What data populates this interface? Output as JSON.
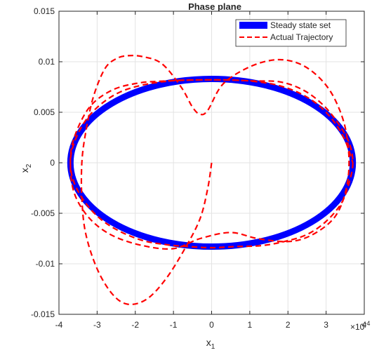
{
  "chart_data": {
    "type": "line",
    "title": "Phase plane",
    "xlabel": "x",
    "xlabel_sub": "1",
    "ylabel": "x",
    "ylabel_sub": "2",
    "x_multiplier_base": "×10",
    "x_multiplier_exp": "-4",
    "xlim": [
      -4,
      4
    ],
    "ylim": [
      -0.015,
      0.015
    ],
    "xticks": [
      -4,
      -3,
      -2,
      -1,
      0,
      1,
      2,
      3,
      4
    ],
    "xtick_labels": [
      "-4",
      "-3",
      "-2",
      "-1",
      "0",
      "1",
      "2",
      "3",
      "4"
    ],
    "yticks": [
      -0.015,
      -0.01,
      -0.005,
      0,
      0.005,
      0.01,
      0.015
    ],
    "ytick_labels": [
      "-0.015",
      "-0.01",
      "-0.005",
      "0",
      "0.005",
      "0.01",
      "0.015"
    ],
    "grid": true,
    "legend_position": "top-right",
    "series": [
      {
        "name": "Steady state set",
        "style": "solid-thick",
        "color": "#0000ff",
        "ellipse": {
          "cx": 0,
          "cy": 0,
          "rx": 3.7,
          "ry": 0.0083
        }
      },
      {
        "name": "Actual Trajectory",
        "style": "dashed",
        "color": "#ff0000",
        "x": [
          0,
          -0.1,
          -0.3,
          -0.7,
          -1.2,
          -1.7,
          -2.2,
          -2.6,
          -3.0,
          -3.3,
          -3.4,
          -3.4,
          -3.3,
          -3.1,
          -2.8,
          -2.5,
          -2.2,
          -1.8,
          -1.3,
          -0.8,
          -0.5,
          -0.3,
          -0.1,
          0.3,
          1.0,
          1.7,
          2.3,
          2.8,
          3.2,
          3.5,
          3.6,
          3.5,
          3.2,
          2.6,
          2.0,
          1.2,
          0.5,
          -0.3,
          -1.0,
          -1.8,
          -2.6,
          -3.2,
          -3.6,
          -3.7,
          -3.6,
          -3.2,
          -2.6,
          -1.9,
          -1.2,
          -0.4,
          0.4,
          1.1,
          1.8,
          2.4,
          2.9,
          3.3,
          3.6,
          3.7,
          3.6,
          3.4,
          3.0,
          2.5,
          1.9,
          1.3,
          0.6,
          0.0,
          -0.6,
          -1.2,
          -1.8,
          -2.4,
          -2.9,
          -3.3,
          -3.6,
          -3.7,
          -3.6,
          -3.3,
          -2.9,
          -2.4,
          -1.8,
          -1.1,
          -0.4,
          0.3,
          1.0,
          1.7,
          2.3,
          2.8,
          3.2,
          3.5,
          3.7
        ],
        "y": [
          0,
          -0.0025,
          -0.0055,
          -0.0085,
          -0.0115,
          -0.0135,
          -0.014,
          -0.013,
          -0.0105,
          -0.007,
          -0.0035,
          0.0,
          0.003,
          0.0065,
          0.0093,
          0.0103,
          0.0106,
          0.0105,
          0.0098,
          0.0075,
          0.0055,
          0.0048,
          0.0052,
          0.0078,
          0.0095,
          0.0102,
          0.0098,
          0.0085,
          0.0065,
          0.0035,
          0.0,
          -0.003,
          -0.0055,
          -0.0072,
          -0.0078,
          -0.0075,
          -0.0069,
          -0.0075,
          -0.0085,
          -0.0082,
          -0.0072,
          -0.0055,
          -0.003,
          0.0,
          0.0025,
          0.0055,
          0.0072,
          0.0079,
          0.0081,
          0.0082,
          0.0082,
          0.0081,
          0.008,
          0.0072,
          0.0058,
          0.004,
          0.002,
          0.0,
          -0.002,
          -0.004,
          -0.0058,
          -0.0071,
          -0.0078,
          -0.0082,
          -0.0083,
          -0.0084,
          -0.0083,
          -0.0081,
          -0.0077,
          -0.0068,
          -0.0056,
          -0.004,
          -0.002,
          0.0,
          0.002,
          0.0042,
          0.0058,
          0.007,
          0.0077,
          0.0081,
          0.0082,
          0.0082,
          0.0081,
          0.0077,
          0.0069,
          0.0057,
          0.0041,
          0.0022,
          0.0
        ]
      }
    ]
  }
}
